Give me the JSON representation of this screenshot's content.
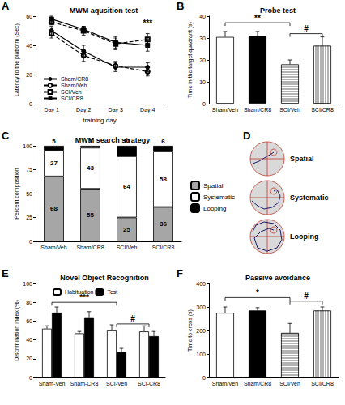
{
  "chart_data": [
    {
      "panel": "A",
      "type": "line",
      "title": "MWM aqusition test",
      "x_label": "training day",
      "y_label": "Latency to the platform (Sec)",
      "categories": [
        "Day 1",
        "Day 2",
        "Day 3",
        "Day 4"
      ],
      "ylim": [
        0,
        60
      ],
      "yticks": [
        0,
        20,
        40,
        60
      ],
      "grid": false,
      "legend": "bottom-left",
      "series": [
        {
          "name": "Sham/CR8",
          "color": "#000000",
          "line_style": "solid",
          "marker": "circle",
          "values": [
            50,
            36,
            25,
            25
          ],
          "errors": [
            3,
            4,
            3,
            3
          ]
        },
        {
          "name": "Sham/Veh",
          "color": "#000000",
          "line_style": "dashed",
          "marker": "open_circle",
          "values": [
            48,
            33,
            26,
            22
          ],
          "errors": [
            3,
            4,
            3,
            3
          ]
        },
        {
          "name": "SCI/Veh",
          "color": "#000000",
          "line_style": "dashed",
          "marker": "open_square",
          "values": [
            56,
            50,
            41,
            44
          ],
          "errors": [
            2,
            3,
            4,
            4
          ]
        },
        {
          "name": "SCI/CR8",
          "color": "#000000",
          "line_style": "solid",
          "marker": "square",
          "values": [
            58,
            51,
            42,
            40
          ],
          "errors": [
            2,
            2,
            4,
            4
          ]
        }
      ],
      "annotations": [
        {
          "text": "***",
          "x": "Day 4",
          "y": 52
        }
      ]
    },
    {
      "panel": "B",
      "type": "bar",
      "title": "Probe test",
      "y_label": "Time in the target quadrant (s)",
      "categories": [
        "Sham/Veh",
        "Sham/CR8",
        "SCI/Veh",
        "SCI/CR8"
      ],
      "values": [
        30.5,
        31,
        18,
        26.5
      ],
      "errors": [
        2.5,
        2,
        2,
        4
      ],
      "colors": [
        "#ffffff",
        "#000000",
        "#ffffff",
        "#ffffff"
      ],
      "ylim": [
        0,
        40
      ],
      "yticks": [
        0,
        10,
        20,
        30,
        40
      ],
      "grid": false,
      "annotations": [
        {
          "text": "**",
          "from": "Sham/Veh",
          "to": "SCI/Veh",
          "y": 37
        },
        {
          "text": "#",
          "from": "SCI/Veh",
          "to": "SCI/CR8",
          "y": 32
        }
      ]
    },
    {
      "panel": "C",
      "type": "bar",
      "title": "MWM search strategy",
      "y_label": "Percent composition",
      "categories": [
        "Sham/Veh",
        "Sham/CR8",
        "SCI/Veh",
        "SCI/CR8"
      ],
      "stacked": true,
      "data_labels": true,
      "legend": "right",
      "ylim": [
        0,
        100
      ],
      "yticks": [
        0,
        25,
        50,
        75,
        100
      ],
      "grid": false,
      "series": [
        {
          "name": "Spatial",
          "color": "#a6a6a6",
          "values": [
            68,
            55,
            25,
            36
          ]
        },
        {
          "name": "Systematic",
          "color": "#ffffff",
          "values": [
            27,
            43,
            64,
            58
          ]
        },
        {
          "name": "Looping",
          "color": "#000000",
          "values": [
            5,
            2,
            11,
            6
          ]
        }
      ]
    },
    {
      "panel": "E",
      "type": "bar",
      "title": "Novel Object Recognition",
      "y_label": "Discrimination index (%)",
      "categories": [
        "Sham-Veh",
        "Sham-CR8",
        "SCI-Veh",
        "SCI-CR8"
      ],
      "legend": "top",
      "ylim": [
        0,
        100
      ],
      "yticks": [
        0,
        20,
        40,
        60,
        80,
        100
      ],
      "grid": false,
      "series": [
        {
          "name": "Habituation",
          "color": "#ffffff",
          "values": [
            52,
            47,
            50,
            49
          ],
          "errors": [
            3,
            2,
            6,
            6
          ]
        },
        {
          "name": "Test",
          "color": "#000000",
          "values": [
            69,
            64,
            27,
            44
          ],
          "errors": [
            6,
            6,
            4,
            5
          ]
        }
      ],
      "annotations": [
        {
          "text": "***",
          "from": "Sham-Veh",
          "to": "SCI-Veh",
          "y": 80
        },
        {
          "text": "#",
          "from": "SCI-Veh",
          "to": "SCI-CR8",
          "y": 57
        }
      ]
    },
    {
      "panel": "F",
      "type": "bar",
      "title": "Passive avoidance",
      "y_label": "Time to cross (s)",
      "categories": [
        "Sham/Veh",
        "Sham/CR8",
        "SCI/Veh",
        "SCI/CR8"
      ],
      "values": [
        275,
        285,
        190,
        285
      ],
      "errors": [
        25,
        12,
        40,
        15
      ],
      "colors": [
        "#ffffff",
        "#000000",
        "#ffffff",
        "#ffffff"
      ],
      "ylim": [
        0,
        400
      ],
      "yticks": [
        0,
        100,
        200,
        300,
        400
      ],
      "grid": false,
      "annotations": [
        {
          "text": "*",
          "from": "Sham/Veh",
          "to": "SCI/Veh",
          "y": 340
        },
        {
          "text": "#",
          "from": "SCI/Veh",
          "to": "SCI/CR8",
          "y": 325
        }
      ]
    }
  ],
  "diagram": {
    "panel": "D",
    "labels": [
      "Spatial",
      "Systematic",
      "Looping"
    ]
  }
}
